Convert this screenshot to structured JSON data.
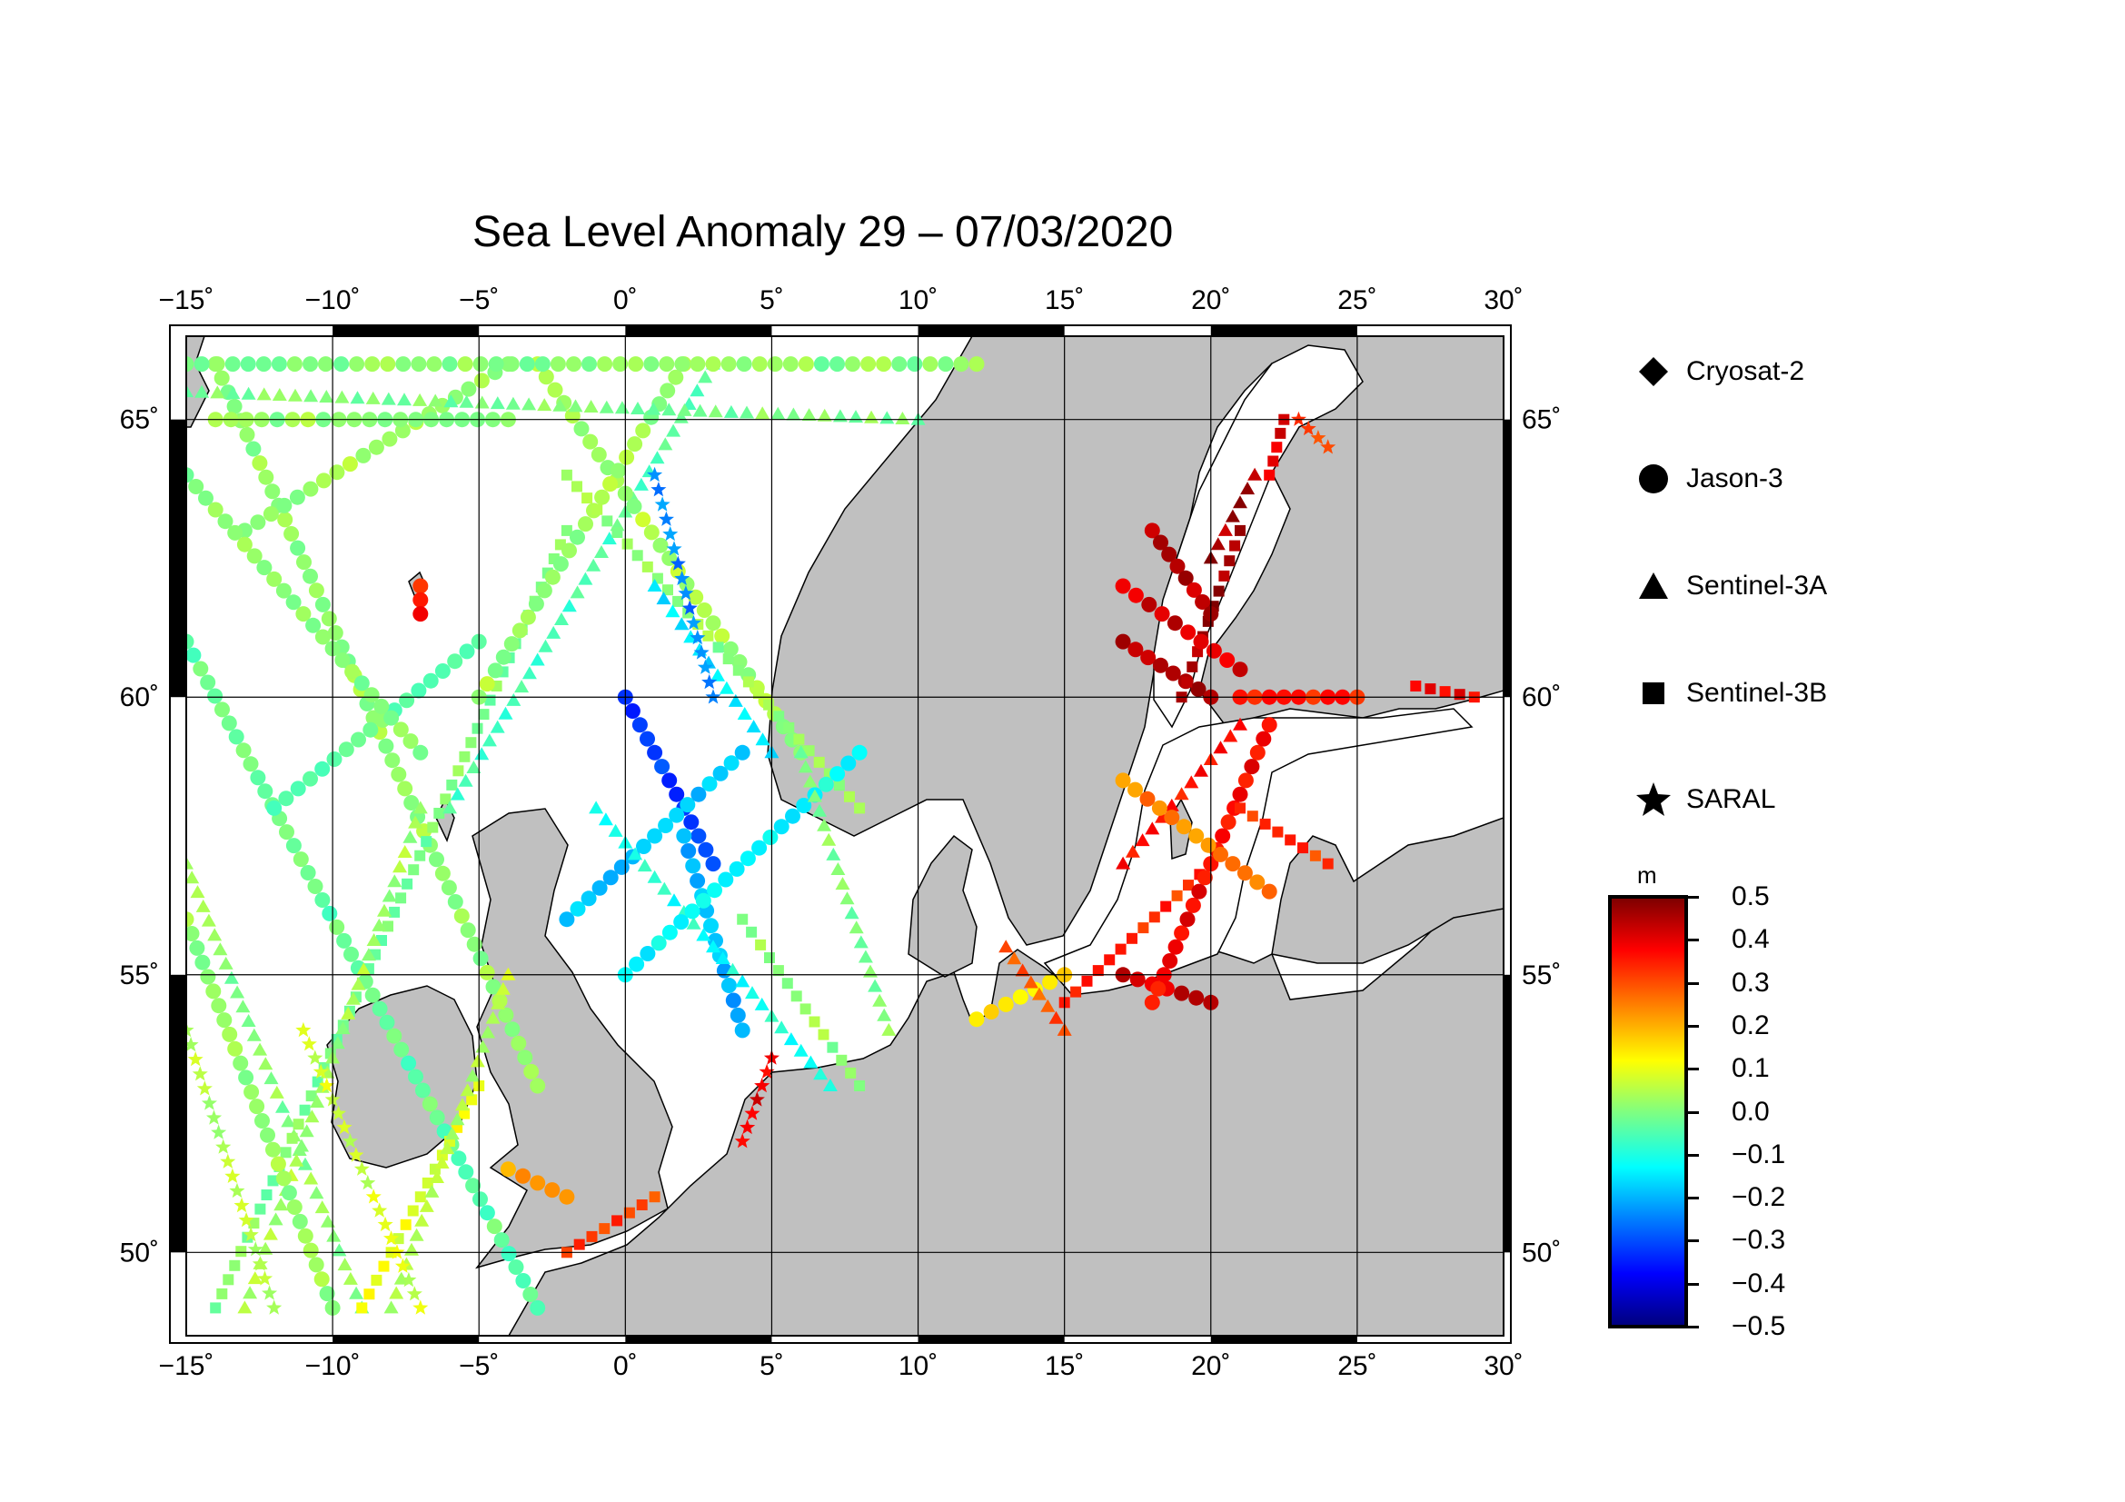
{
  "title": "Sea Level Anomaly 29 – 07/03/2020",
  "map": {
    "lon_range": [
      -15,
      30
    ],
    "lat_range": [
      48.5,
      66.5
    ],
    "lon_ticks": [
      "−15˚",
      "−10˚",
      "−5˚",
      "0˚",
      "5˚",
      "10˚",
      "15˚",
      "20˚",
      "25˚",
      "30˚"
    ],
    "lat_ticks": [
      "50˚",
      "55˚",
      "60˚",
      "65˚"
    ],
    "land_color": "#c0c0c0",
    "ocean_color": "#ffffff",
    "grid": true
  },
  "legend": {
    "items": [
      {
        "label": "Cryosat-2",
        "icon": "diamond-icon"
      },
      {
        "label": "Jason-3",
        "icon": "circle-icon"
      },
      {
        "label": "Sentinel-3A",
        "icon": "triangle-icon"
      },
      {
        "label": "Sentinel-3B",
        "icon": "square-icon"
      },
      {
        "label": "SARAL",
        "icon": "star-icon"
      }
    ]
  },
  "colorbar": {
    "unit": "m",
    "min": -0.5,
    "max": 0.5,
    "ticks": [
      "0.5",
      "0.4",
      "0.3",
      "0.2",
      "0.1",
      "0.0",
      "−0.1",
      "−0.2",
      "−0.3",
      "−0.4",
      "−0.5"
    ],
    "colors": [
      "#00007f",
      "#0000ff",
      "#0080ff",
      "#00ffff",
      "#80ff80",
      "#ffff00",
      "#ff8000",
      "#ff0000",
      "#7f0000"
    ]
  },
  "tracks": [
    {
      "sat": "jason",
      "from": [
        -14,
        66
      ],
      "to": [
        -3,
        53
      ],
      "value": 0.02
    },
    {
      "sat": "jason",
      "from": [
        -13,
        63
      ],
      "to": [
        -4,
        66
      ],
      "value": 0.03
    },
    {
      "sat": "s3a",
      "from": [
        -15,
        57
      ],
      "to": [
        -9,
        49
      ],
      "value": 0.01
    },
    {
      "sat": "s3b",
      "from": [
        -14,
        49
      ],
      "to": [
        -2,
        63
      ],
      "value": 0.0
    },
    {
      "sat": "jason",
      "from": [
        -15,
        61
      ],
      "to": [
        -3,
        49
      ],
      "value": -0.03
    },
    {
      "sat": "s3a",
      "from": [
        -13,
        49
      ],
      "to": [
        -7,
        58
      ],
      "value": 0.04
    },
    {
      "sat": "saral",
      "from": [
        -12,
        49
      ],
      "to": [
        -15,
        54
      ],
      "value": 0.05
    },
    {
      "sat": "jason",
      "from": [
        -10,
        49
      ],
      "to": [
        -15,
        56
      ],
      "value": 0.02
    },
    {
      "sat": "s3b",
      "from": [
        -9,
        49
      ],
      "to": [
        -5,
        53
      ],
      "value": 0.1
    },
    {
      "sat": "s3a",
      "from": [
        -8,
        49
      ],
      "to": [
        -4,
        55
      ],
      "value": 0.06
    },
    {
      "sat": "saral",
      "from": [
        -7,
        49
      ],
      "to": [
        -11,
        54
      ],
      "value": 0.08
    },
    {
      "sat": "jason",
      "from": [
        -12,
        58
      ],
      "to": [
        -5,
        61
      ],
      "value": -0.02
    },
    {
      "sat": "jason",
      "from": [
        -15,
        64
      ],
      "to": [
        -7,
        59
      ],
      "value": 0.01
    },
    {
      "sat": "s3a",
      "from": [
        -6,
        58
      ],
      "to": [
        3,
        66
      ],
      "value": -0.05
    },
    {
      "sat": "jason",
      "from": [
        -3,
        66
      ],
      "to": [
        6,
        59
      ],
      "value": 0.04
    },
    {
      "sat": "jason",
      "from": [
        -5,
        60
      ],
      "to": [
        2,
        66
      ],
      "value": 0.03
    },
    {
      "sat": "s3b",
      "from": [
        -2,
        64
      ],
      "to": [
        8,
        58
      ],
      "value": 0.02
    },
    {
      "sat": "jason",
      "from": [
        -14,
        65
      ],
      "to": [
        -4,
        65
      ],
      "value": 0.02
    },
    {
      "sat": "jason",
      "from": [
        -15,
        66
      ],
      "to": [
        12,
        66
      ],
      "value": 0.01
    },
    {
      "sat": "s3a",
      "from": [
        -15,
        65.5
      ],
      "to": [
        10,
        65
      ],
      "value": 0.0
    },
    {
      "sat": "jason",
      "from": [
        0,
        60
      ],
      "to": [
        3,
        57
      ],
      "value": -0.32
    },
    {
      "sat": "jason",
      "from": [
        2,
        57.5
      ],
      "to": [
        4,
        54
      ],
      "value": -0.2
    },
    {
      "sat": "jason",
      "from": [
        -2,
        56
      ],
      "to": [
        4,
        59
      ],
      "value": -0.18
    },
    {
      "sat": "s3a",
      "from": [
        1,
        62
      ],
      "to": [
        5,
        59
      ],
      "value": -0.15
    },
    {
      "sat": "s3a",
      "from": [
        -1,
        58
      ],
      "to": [
        7,
        53
      ],
      "value": -0.1
    },
    {
      "sat": "jason",
      "from": [
        0,
        55
      ],
      "to": [
        8,
        59
      ],
      "value": -0.12
    },
    {
      "sat": "saral",
      "from": [
        1,
        64
      ],
      "to": [
        3,
        60
      ],
      "value": -0.25
    },
    {
      "sat": "s3b",
      "from": [
        4,
        56
      ],
      "to": [
        8,
        53
      ],
      "value": 0.02
    },
    {
      "sat": "s3a",
      "from": [
        6,
        59
      ],
      "to": [
        9,
        54
      ],
      "value": 0.0
    },
    {
      "sat": "jason",
      "from": [
        17,
        55
      ],
      "to": [
        20,
        54.5
      ],
      "value": 0.42
    },
    {
      "sat": "jason",
      "from": [
        12,
        54.2
      ],
      "to": [
        15,
        55
      ],
      "value": 0.15
    },
    {
      "sat": "s3a",
      "from": [
        13,
        55.5
      ],
      "to": [
        15,
        54
      ],
      "value": 0.3
    },
    {
      "sat": "s3b",
      "from": [
        15,
        54.5
      ],
      "to": [
        20,
        57
      ],
      "value": 0.33
    },
    {
      "sat": "jason",
      "from": [
        18,
        54.5
      ],
      "to": [
        22,
        59.5
      ],
      "value": 0.38
    },
    {
      "sat": "s3a",
      "from": [
        17,
        57
      ],
      "to": [
        21,
        59.5
      ],
      "value": 0.35
    },
    {
      "sat": "jason",
      "from": [
        17,
        58.5
      ],
      "to": [
        22,
        56.5
      ],
      "value": 0.25
    },
    {
      "sat": "s3b",
      "from": [
        21,
        58
      ],
      "to": [
        24,
        57
      ],
      "value": 0.32
    },
    {
      "sat": "jason",
      "from": [
        17,
        61
      ],
      "to": [
        20,
        60
      ],
      "value": 0.45
    },
    {
      "sat": "s3b",
      "from": [
        19,
        60
      ],
      "to": [
        21,
        63
      ],
      "value": 0.47
    },
    {
      "sat": "jason",
      "from": [
        17,
        62
      ],
      "to": [
        21,
        60.5
      ],
      "value": 0.42
    },
    {
      "sat": "jason",
      "from": [
        18,
        63
      ],
      "to": [
        20,
        61.5
      ],
      "value": 0.44
    },
    {
      "sat": "s3a",
      "from": [
        20,
        62.5
      ],
      "to": [
        21.5,
        64
      ],
      "value": 0.46
    },
    {
      "sat": "s3b",
      "from": [
        22,
        64
      ],
      "to": [
        22.5,
        65
      ],
      "value": 0.4
    },
    {
      "sat": "jason",
      "from": [
        21,
        60
      ],
      "to": [
        25,
        60
      ],
      "value": 0.35
    },
    {
      "sat": "s3b",
      "from": [
        27,
        60.2
      ],
      "to": [
        29,
        60
      ],
      "value": 0.38
    },
    {
      "sat": "saral",
      "from": [
        23,
        65
      ],
      "to": [
        24,
        64.5
      ],
      "value": 0.3
    },
    {
      "sat": "s3b",
      "from": [
        -2,
        50
      ],
      "to": [
        1,
        51
      ],
      "value": 0.32
    },
    {
      "sat": "jason",
      "from": [
        -4,
        51.5
      ],
      "to": [
        -2,
        51
      ],
      "value": 0.22
    },
    {
      "sat": "saral",
      "from": [
        4,
        52
      ],
      "to": [
        5,
        53.5
      ],
      "value": 0.4
    },
    {
      "sat": "jason",
      "from": [
        -7,
        62
      ],
      "to": [
        -7,
        61.5
      ],
      "value": 0.35
    }
  ]
}
